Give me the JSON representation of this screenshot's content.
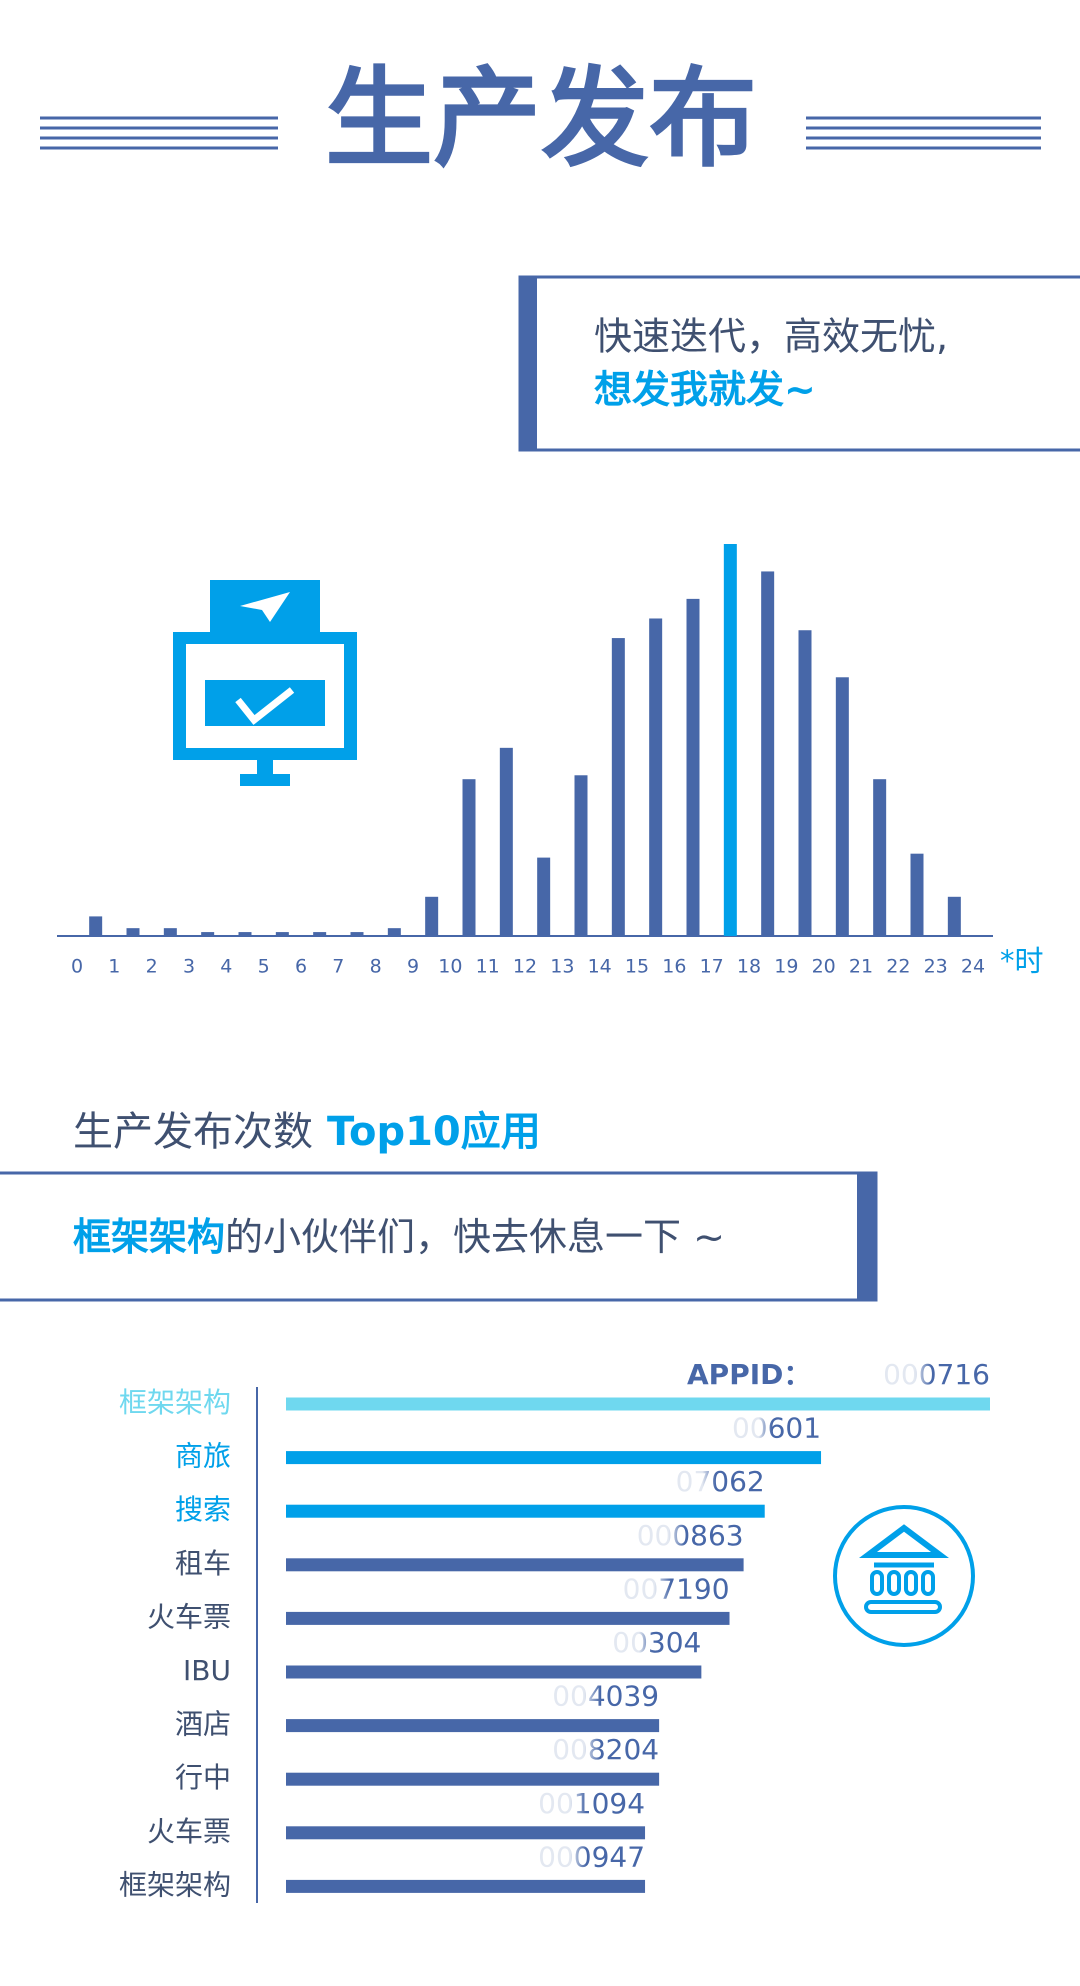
{
  "header": {
    "title": "生产发布"
  },
  "callout1": {
    "line1": "快速迭代，高效无忧,",
    "line2": "想发我就发~"
  },
  "callout2": {
    "highlight": "框架架构",
    "text": "的小伙伴们，快去休息一下 ~"
  },
  "chart_data": [
    {
      "type": "histogram",
      "bins": [
        0,
        1,
        2,
        3,
        4,
        5,
        6,
        7,
        8,
        9,
        10,
        11,
        12,
        13,
        14,
        15,
        16,
        17,
        18,
        19,
        20,
        21,
        22,
        23,
        24
      ],
      "values": [
        5,
        2,
        2,
        1,
        1,
        1,
        1,
        1,
        2,
        10,
        40,
        48,
        20,
        41,
        76,
        81,
        86,
        100,
        93,
        78,
        66,
        40,
        21,
        10
      ],
      "colors": [
        "#4767a8",
        "#4767a8",
        "#4767a8",
        "#4767a8",
        "#4767a8",
        "#4767a8",
        "#4767a8",
        "#4767a8",
        "#4767a8",
        "#4767a8",
        "#4767a8",
        "#4767a8",
        "#4767a8",
        "#4767a8",
        "#4767a8",
        "#4767a8",
        "#4767a8",
        "#00a0e9",
        "#4767a8",
        "#4767a8",
        "#4767a8",
        "#4767a8",
        "#4767a8",
        "#4767a8"
      ],
      "x_label": "*时"
    },
    {
      "type": "hbar",
      "title": "生产发布次数",
      "title_highlight": "Top10应用",
      "value_caption": "APPID：",
      "categories": [
        "框架架构",
        "商旅",
        "搜索",
        "租车",
        "火车票",
        "IBU",
        "酒店",
        "行中",
        "火车票",
        "框架架构"
      ],
      "values": [
        100,
        76,
        68,
        65,
        63,
        59,
        53,
        53,
        51,
        51
      ],
      "appids": [
        "000716",
        "00601",
        "07062",
        "000863",
        "007190",
        "00304",
        "004039",
        "008204",
        "001094",
        "000947"
      ],
      "colors": [
        "#6fd8ef",
        "#00a0e9",
        "#00a0e9",
        "#4767a8",
        "#4767a8",
        "#4767a8",
        "#4767a8",
        "#4767a8",
        "#4767a8",
        "#4767a8"
      ],
      "label_colors": [
        "#6fd8ef",
        "#00a0e9",
        "#00a0e9",
        "#3f5070",
        "#3f5070",
        "#3f5070",
        "#3f5070",
        "#3f5070",
        "#3f5070",
        "#3f5070"
      ]
    }
  ]
}
